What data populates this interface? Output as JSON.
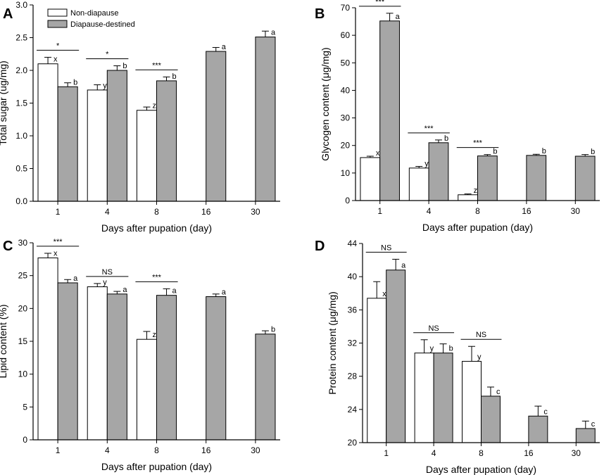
{
  "figure": {
    "groups": [
      "Non-diapause",
      "Diapause-destined"
    ]
  },
  "colors": {
    "nd": "#ffffff",
    "dd": "#a6a6a6",
    "axis": "#000000"
  },
  "chart_data": [
    {
      "panel": "A",
      "type": "bar",
      "title": "",
      "xlabel": "Days after pupation (day)",
      "ylabel": "Total sugar (ug/mg)",
      "categories": [
        "1",
        "4",
        "8",
        "16",
        "30"
      ],
      "ylim": [
        0,
        3.0
      ],
      "yticks": [
        "0.0",
        "0.5",
        "1.0",
        "1.5",
        "2.0",
        "2.5",
        "3.0"
      ],
      "legend": {
        "position": "top-left",
        "entries": [
          "Non-diapause",
          "Diapause-destined"
        ]
      },
      "series": [
        {
          "name": "Non-diapause",
          "values": [
            2.1,
            1.7,
            1.39,
            null,
            null
          ],
          "errors": [
            0.1,
            0.08,
            0.05,
            null,
            null
          ],
          "letters": [
            "x",
            "y",
            "z",
            null,
            null
          ]
        },
        {
          "name": "Diapause-destined",
          "values": [
            1.75,
            2.0,
            1.84,
            2.29,
            2.51
          ],
          "errors": [
            0.06,
            0.07,
            0.06,
            0.06,
            0.09
          ],
          "letters": [
            "b",
            "b",
            "b",
            "a",
            "a"
          ]
        }
      ],
      "significance": [
        "*",
        "*",
        "***",
        null,
        null
      ]
    },
    {
      "panel": "B",
      "type": "bar",
      "title": "",
      "xlabel": "Days after pupation (day)",
      "ylabel": "Glycogen content (μg/mg)",
      "categories": [
        "1",
        "4",
        "8",
        "16",
        "30"
      ],
      "ylim": [
        0,
        70
      ],
      "yticks": [
        "0",
        "10",
        "20",
        "30",
        "40",
        "50",
        "60",
        "70"
      ],
      "series": [
        {
          "name": "Non-diapause",
          "values": [
            15.6,
            11.8,
            2.1,
            null,
            null
          ],
          "errors": [
            0.5,
            0.6,
            0.3,
            null,
            null
          ],
          "letters": [
            "x",
            "y",
            "z",
            null,
            null
          ]
        },
        {
          "name": "Diapause-destined",
          "values": [
            65.2,
            21.0,
            16.2,
            16.4,
            16.1
          ],
          "errors": [
            2.8,
            1.0,
            0.5,
            0.4,
            0.6
          ],
          "letters": [
            "a",
            "b",
            "b",
            "b",
            "b"
          ]
        }
      ],
      "significance": [
        "***",
        "***",
        "***",
        null,
        null
      ]
    },
    {
      "panel": "C",
      "type": "bar",
      "title": "",
      "xlabel": "Days after pupation (day)",
      "ylabel": "Lipid content (%)",
      "categories": [
        "1",
        "4",
        "8",
        "16",
        "30"
      ],
      "ylim": [
        0,
        30
      ],
      "yticks": [
        "0",
        "5",
        "10",
        "15",
        "20",
        "25",
        "30"
      ],
      "series": [
        {
          "name": "Non-diapause",
          "values": [
            27.7,
            23.3,
            15.3,
            null,
            null
          ],
          "errors": [
            0.7,
            0.5,
            1.2,
            null,
            null
          ],
          "letters": [
            "x",
            "y",
            "z",
            null,
            null
          ]
        },
        {
          "name": "Diapause-destined",
          "values": [
            23.9,
            22.2,
            22.0,
            21.8,
            16.1
          ],
          "errors": [
            0.5,
            0.4,
            1.0,
            0.4,
            0.5
          ],
          "letters": [
            "a",
            "a",
            "a",
            "a",
            "b"
          ]
        }
      ],
      "significance": [
        "***",
        "NS",
        "***",
        null,
        null
      ]
    },
    {
      "panel": "D",
      "type": "bar",
      "title": "",
      "xlabel": "Days after pupation (day)",
      "ylabel": "Protein content (μg/mg)",
      "categories": [
        "1",
        "4",
        "8",
        "16",
        "30"
      ],
      "ylim": [
        20,
        44
      ],
      "yticks": [
        "20",
        "24",
        "28",
        "32",
        "36",
        "40",
        "44"
      ],
      "series": [
        {
          "name": "Non-diapause",
          "values": [
            37.4,
            30.8,
            29.8,
            null,
            null
          ],
          "errors": [
            2.0,
            1.6,
            1.8,
            null,
            null
          ],
          "letters": [
            "x",
            "y",
            "y",
            null,
            null
          ]
        },
        {
          "name": "Diapause-destined",
          "values": [
            40.8,
            30.8,
            25.6,
            23.2,
            21.7
          ],
          "errors": [
            1.3,
            1.1,
            1.1,
            1.2,
            0.9
          ],
          "letters": [
            "a",
            "b",
            "c",
            "c",
            "c"
          ]
        }
      ],
      "significance": [
        "NS",
        "NS",
        "NS",
        null,
        null
      ]
    }
  ]
}
